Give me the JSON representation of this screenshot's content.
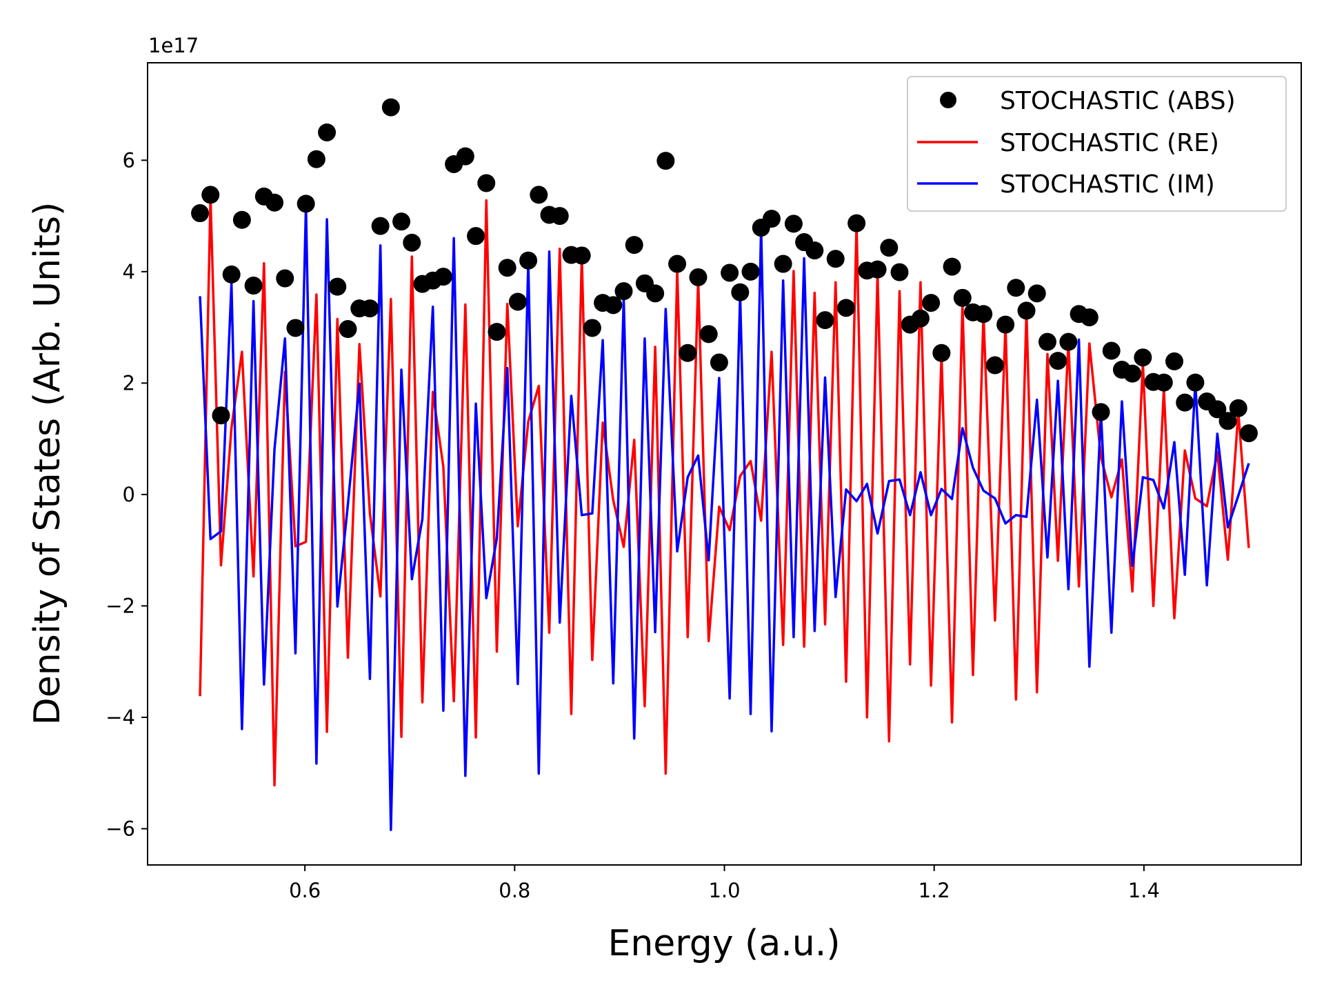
{
  "chart_data": {
    "type": "line",
    "title": "",
    "xlabel": "Energy (a.u.)",
    "ylabel": "Density of States (Arb. Units)",
    "y_offset_text": "1e17",
    "y_multiplier": 1e+17,
    "xlim": [
      0.45,
      1.55
    ],
    "ylim": [
      -6.65,
      7.75
    ],
    "grid": false,
    "legend_position": "top-right",
    "x_ticks": [
      0.6,
      0.8,
      1.0,
      1.2,
      1.4
    ],
    "x_tick_labels": [
      "0.6",
      "0.8",
      "1.0",
      "1.2",
      "1.4"
    ],
    "y_ticks": [
      -6,
      -4,
      -2,
      0,
      2,
      4,
      6
    ],
    "y_tick_labels": [
      "−6",
      "−4",
      "−2",
      "0",
      "2",
      "4",
      "6"
    ],
    "x": [
      0.5,
      0.51,
      0.52,
      0.53,
      0.54,
      0.551,
      0.561,
      0.571,
      0.581,
      0.591,
      0.601,
      0.611,
      0.621,
      0.631,
      0.641,
      0.652,
      0.662,
      0.672,
      0.682,
      0.692,
      0.702,
      0.712,
      0.722,
      0.732,
      0.742,
      0.753,
      0.763,
      0.773,
      0.783,
      0.793,
      0.803,
      0.813,
      0.823,
      0.833,
      0.843,
      0.854,
      0.864,
      0.874,
      0.884,
      0.894,
      0.904,
      0.914,
      0.924,
      0.934,
      0.944,
      0.955,
      0.965,
      0.975,
      0.985,
      0.995,
      1.005,
      1.015,
      1.025,
      1.035,
      1.045,
      1.056,
      1.066,
      1.076,
      1.086,
      1.096,
      1.106,
      1.116,
      1.126,
      1.136,
      1.146,
      1.157,
      1.167,
      1.177,
      1.187,
      1.197,
      1.207,
      1.217,
      1.227,
      1.237,
      1.247,
      1.258,
      1.268,
      1.278,
      1.288,
      1.298,
      1.308,
      1.318,
      1.328,
      1.338,
      1.348,
      1.359,
      1.369,
      1.379,
      1.389,
      1.399,
      1.409,
      1.419,
      1.429,
      1.439,
      1.449,
      1.46,
      1.47,
      1.48,
      1.49,
      1.5
    ],
    "series": [
      {
        "name": "STOCHASTIC (ABS)",
        "style": "markers",
        "color": "#000000",
        "values": [
          5.05,
          5.38,
          1.42,
          3.95,
          4.93,
          3.75,
          5.35,
          5.24,
          3.88,
          2.99,
          5.22,
          6.02,
          6.5,
          3.73,
          2.97,
          3.34,
          3.34,
          4.82,
          6.95,
          4.9,
          4.52,
          3.78,
          3.84,
          3.91,
          5.93,
          6.07,
          4.64,
          5.59,
          2.92,
          4.07,
          3.46,
          4.2,
          5.38,
          5.02,
          5.0,
          4.3,
          4.29,
          2.99,
          3.44,
          3.4,
          3.65,
          4.48,
          3.79,
          3.61,
          5.99,
          4.14,
          2.54,
          3.9,
          2.88,
          2.37,
          3.98,
          3.63,
          4.0,
          4.79,
          4.95,
          4.14,
          4.86,
          4.53,
          4.38,
          3.13,
          4.23,
          3.35,
          4.87,
          4.02,
          4.04,
          4.43,
          3.99,
          3.05,
          3.16,
          3.44,
          2.54,
          4.09,
          3.53,
          3.27,
          3.24,
          2.32,
          3.05,
          3.71,
          3.3,
          3.61,
          2.74,
          2.4,
          2.74,
          3.24,
          3.18,
          1.48,
          2.58,
          2.24,
          2.17,
          2.46,
          2.02,
          2.01,
          2.39,
          1.65,
          2.01,
          1.67,
          1.53,
          1.32,
          1.55,
          1.1
        ]
      },
      {
        "name": "STOCHASTIC (RE)",
        "style": "line",
        "color": "#ff0000",
        "values": [
          -3.62,
          5.33,
          -1.27,
          1.2,
          2.56,
          -1.47,
          4.15,
          -5.22,
          2.2,
          -0.93,
          -0.85,
          3.59,
          -4.26,
          3.15,
          -2.93,
          2.7,
          -0.34,
          -1.83,
          3.51,
          -4.35,
          4.27,
          -3.73,
          1.84,
          0.5,
          -3.71,
          3.41,
          -4.36,
          5.28,
          -2.82,
          3.42,
          -0.57,
          1.31,
          1.95,
          -2.48,
          4.41,
          -3.94,
          4.28,
          -2.97,
          1.29,
          -0.1,
          -0.94,
          0.98,
          -3.8,
          2.65,
          -5.01,
          4.04,
          -2.56,
          3.85,
          -2.63,
          -0.22,
          -0.64,
          0.33,
          0.6,
          -0.47,
          2.56,
          -2.7,
          4.01,
          -2.73,
          3.62,
          -2.33,
          3.81,
          -3.36,
          4.86,
          -4.0,
          3.97,
          -4.43,
          3.65,
          -3.05,
          3.81,
          -3.43,
          2.52,
          -4.09,
          3.43,
          -3.24,
          3.24,
          -2.26,
          3.05,
          -3.68,
          3.29,
          -3.55,
          2.52,
          -1.19,
          2.74,
          -1.65,
          2.71,
          0.67,
          -0.05,
          0.63,
          -1.74,
          2.36,
          -2.0,
          1.89,
          -2.22,
          0.79,
          -0.07,
          -0.21,
          0.76,
          -1.17,
          1.48,
          -0.96
        ]
      },
      {
        "name": "STOCHASTIC (IM)",
        "style": "line",
        "color": "#0000ff",
        "values": [
          3.56,
          -0.8,
          -0.66,
          3.79,
          -4.21,
          3.47,
          -3.41,
          0.81,
          2.8,
          -2.85,
          5.18,
          -4.83,
          4.94,
          -2.01,
          -0.18,
          1.99,
          -3.31,
          4.47,
          -6.02,
          2.24,
          -1.52,
          -0.44,
          3.37,
          -3.88,
          4.6,
          -5.05,
          1.63,
          -1.86,
          -0.79,
          2.27,
          -3.4,
          4.17,
          -5.01,
          4.36,
          -2.3,
          1.77,
          -0.37,
          -0.34,
          2.77,
          -3.39,
          3.52,
          -4.38,
          2.8,
          -2.47,
          3.33,
          -1.02,
          0.31,
          0.7,
          -1.18,
          2.09,
          -3.66,
          3.59,
          -3.94,
          4.79,
          -4.25,
          3.84,
          -2.56,
          4.24,
          -2.45,
          2.1,
          -1.84,
          0.09,
          -0.12,
          0.19,
          -0.7,
          0.24,
          0.27,
          -0.37,
          0.4,
          -0.37,
          0.1,
          -0.08,
          1.19,
          0.48,
          0.07,
          -0.07,
          -0.52,
          -0.37,
          -0.4,
          1.7,
          -1.13,
          2.04,
          -1.7,
          2.78,
          -3.09,
          1.48,
          -2.48,
          1.67,
          -1.28,
          0.31,
          0.26,
          -0.25,
          0.94,
          -1.44,
          2.0,
          -1.63,
          1.09,
          -0.59,
          -0.02,
          0.56
        ]
      }
    ]
  },
  "legend": {
    "items": [
      {
        "label": "STOCHASTIC (ABS)",
        "kind": "marker",
        "color": "#000000"
      },
      {
        "label": "STOCHASTIC (RE)",
        "kind": "line",
        "color": "#ff0000"
      },
      {
        "label": "STOCHASTIC (IM)",
        "kind": "line",
        "color": "#0000ff"
      }
    ]
  }
}
